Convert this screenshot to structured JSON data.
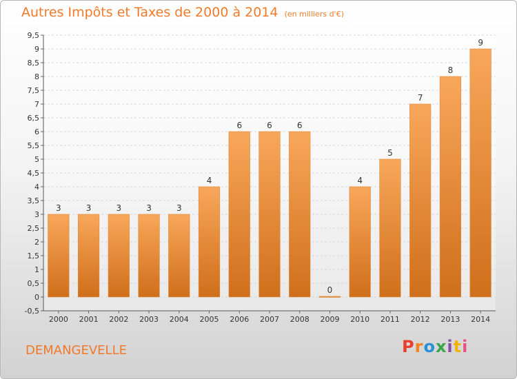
{
  "header": {
    "title": "Autres Impôts et Taxes de 2000 à 2014",
    "unit": "(en milliers d'€)"
  },
  "footer": {
    "commune": "DEMANGEVELLE",
    "logo": "Proxiti",
    "logo_colors": [
      "#e83e2e",
      "#f58220",
      "#2a8fd4",
      "#3aa64a",
      "#8a4ea8",
      "#f2b300",
      "#e8508a"
    ]
  },
  "colors": {
    "accent": "#f07a2a",
    "bar_top": "#f8a75a",
    "bar_bottom": "#cf6f1b"
  },
  "chart_data": {
    "type": "bar",
    "title": "Autres Impôts et Taxes de 2000 à 2014",
    "xlabel": "",
    "ylabel": "",
    "categories": [
      "2000",
      "2001",
      "2002",
      "2003",
      "2004",
      "2005",
      "2006",
      "2007",
      "2008",
      "2009",
      "2010",
      "2011",
      "2012",
      "2013",
      "2014"
    ],
    "values": [
      3,
      3,
      3,
      3,
      3,
      4,
      6,
      6,
      6,
      0,
      4,
      5,
      7,
      8,
      9
    ],
    "ylim": [
      -0.5,
      9.5
    ],
    "yticks": [
      "-0,5",
      "0",
      "0,5",
      "1",
      "1,5",
      "2",
      "2,5",
      "3",
      "3,5",
      "4",
      "4,5",
      "5",
      "5,5",
      "6",
      "6,5",
      "7",
      "7,5",
      "8",
      "8,5",
      "9",
      "9,5"
    ],
    "grid": true,
    "legend": "none"
  }
}
